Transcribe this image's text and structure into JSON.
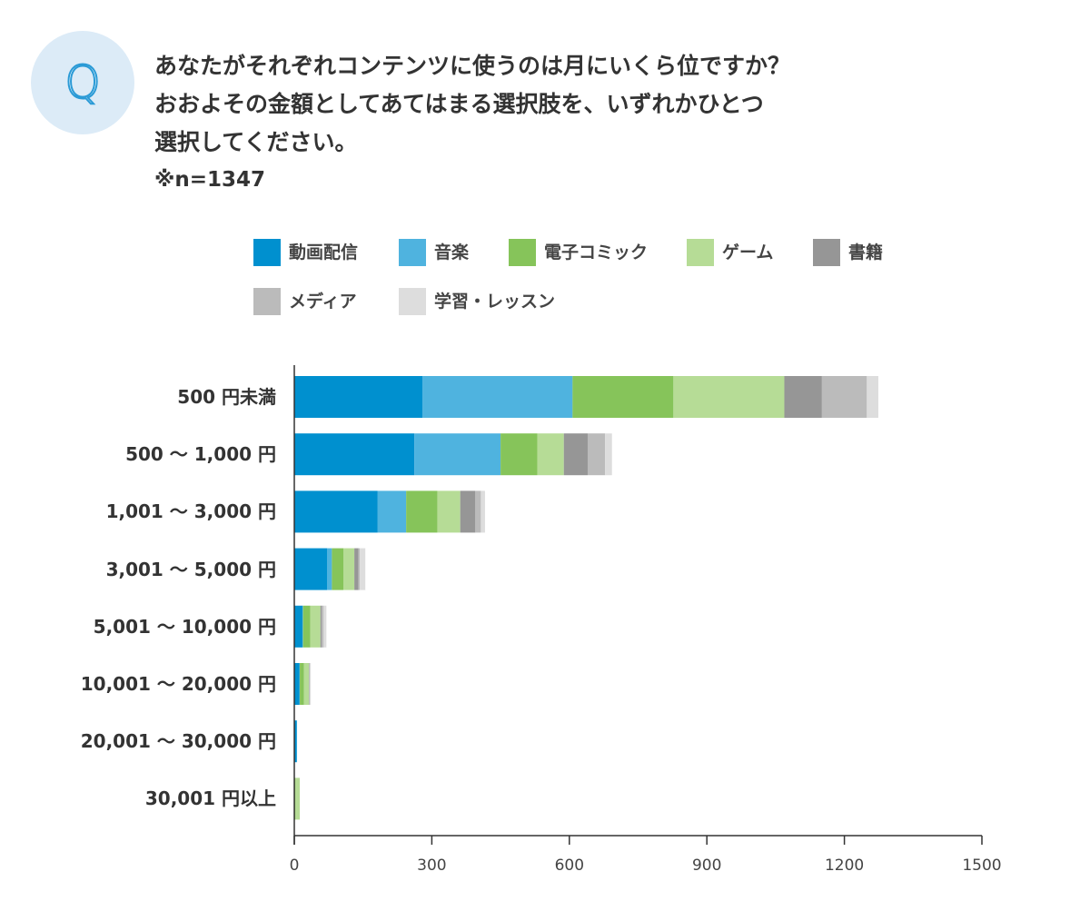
{
  "question": {
    "badge": "Q",
    "lines": [
      "あなたがそれぞれコンテンツに使うのは月にいくら位ですか？",
      "おおよその金額としてあてはまる選択肢を、いずれかひとつ",
      "選択してください。"
    ],
    "sample": "※n=1347"
  },
  "colors": {
    "動画配信": "#0090cf",
    "音楽": "#4fb3df",
    "電子コミック": "#86c45a",
    "ゲーム": "#b6dc96",
    "書籍": "#969696",
    "メディア": "#bbbbbb",
    "学習・レッスン": "#dddddd",
    "axis": "#333333"
  },
  "chart_data": {
    "type": "bar",
    "orientation": "horizontal",
    "stacked": true,
    "title": "",
    "xlabel": "",
    "ylabel": "",
    "xlim": [
      0,
      1500
    ],
    "xticks": [
      0,
      300,
      600,
      900,
      1200,
      1500
    ],
    "legend_position": "top",
    "categories": [
      "500 円未満",
      "500 〜 1,000 円",
      "1,001 〜 3,000 円",
      "3,001 〜 5,000 円",
      "5,001 〜 10,000 円",
      "10,001 〜 20,000 円",
      "20,001 〜 30,000 円",
      "30,001 円以上"
    ],
    "series": [
      {
        "name": "動画配信",
        "values": [
          280,
          262,
          182,
          72,
          18,
          11,
          5,
          0
        ]
      },
      {
        "name": "音楽",
        "values": [
          327,
          188,
          62,
          10,
          1,
          1,
          1,
          0
        ]
      },
      {
        "name": "電子コミック",
        "values": [
          220,
          80,
          68,
          25,
          16,
          9,
          0,
          2
        ]
      },
      {
        "name": "ゲーム",
        "values": [
          242,
          58,
          50,
          24,
          22,
          11,
          0,
          10
        ]
      },
      {
        "name": "書籍",
        "values": [
          82,
          52,
          33,
          9,
          3,
          1,
          0,
          0
        ]
      },
      {
        "name": "メディア",
        "values": [
          98,
          38,
          12,
          3,
          4,
          1,
          0,
          0
        ]
      },
      {
        "name": "学習・レッスン",
        "values": [
          25,
          15,
          9,
          12,
          6,
          2,
          0,
          0
        ]
      }
    ]
  }
}
